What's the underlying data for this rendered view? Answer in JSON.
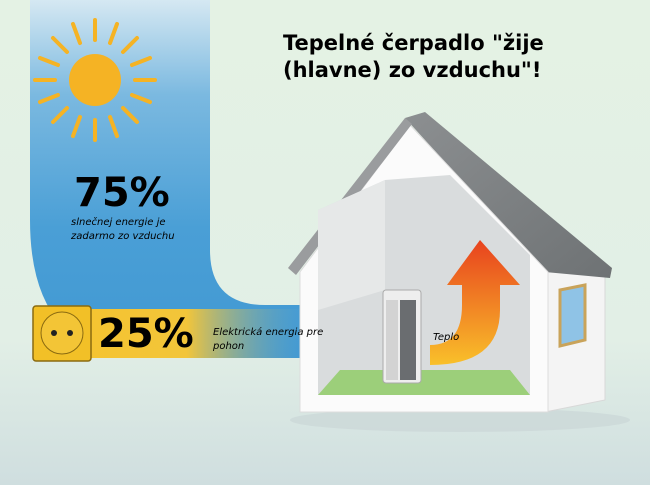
{
  "title": {
    "line1": "Tepelné čerpadlo \"žije",
    "line2": "(hlavne) zo vzduchu\"!"
  },
  "air_energy": {
    "percent": "75%",
    "description": "slnečnej energie je zadarmo zo vzduchu",
    "icon": "sun-icon",
    "color": "#4a9fd6"
  },
  "electric_energy": {
    "percent": "25%",
    "description": "Elektrická energia pre pohon",
    "icon": "power-socket-icon",
    "color": "#f5c431"
  },
  "house": {
    "heat_label": "Teplo",
    "heat_color": "#f07a1e"
  }
}
